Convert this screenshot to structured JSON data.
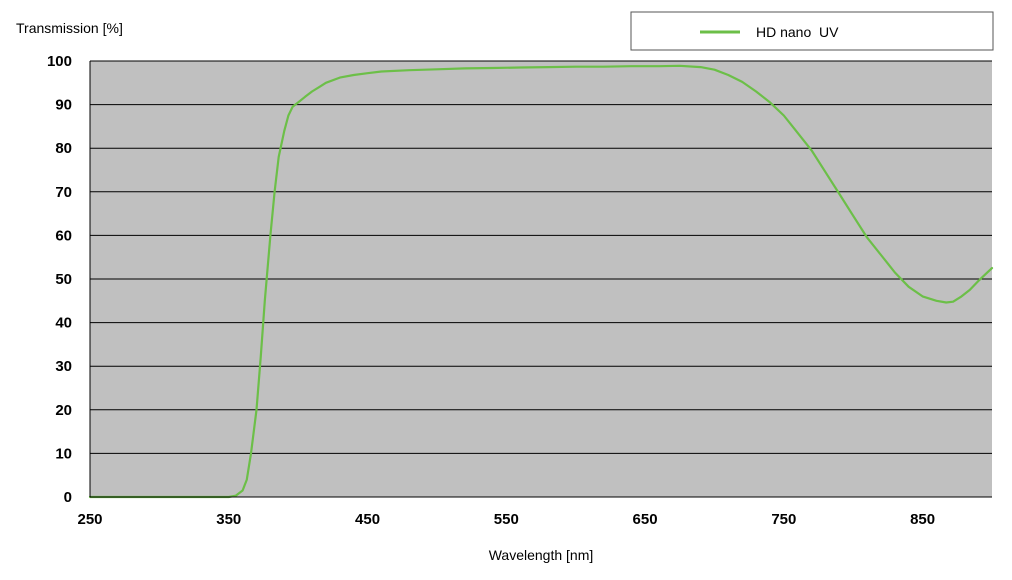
{
  "chart_data": {
    "type": "line",
    "title": "",
    "xlabel": "Wavelength [nm]",
    "ylabel": "Transmission [%]",
    "xlim": [
      250,
      900
    ],
    "ylim": [
      0,
      100
    ],
    "x_ticks": [
      250,
      350,
      450,
      550,
      650,
      750,
      850
    ],
    "y_ticks": [
      0,
      10,
      20,
      30,
      40,
      50,
      60,
      70,
      80,
      90,
      100
    ],
    "grid": "horizontal",
    "legend": "top-right",
    "plot_background": "#c0c0c0",
    "series": [
      {
        "name": "HD nano  UV",
        "color": "#6cbf48",
        "x": [
          250,
          300,
          350,
          355,
          360,
          363,
          366,
          370,
          373,
          376,
          380,
          383,
          386,
          390,
          393,
          396,
          400,
          405,
          410,
          415,
          420,
          430,
          440,
          450,
          460,
          480,
          500,
          520,
          540,
          560,
          580,
          600,
          620,
          640,
          660,
          675,
          690,
          700,
          710,
          720,
          730,
          740,
          750,
          760,
          770,
          780,
          790,
          800,
          810,
          820,
          830,
          840,
          850,
          860,
          867,
          872,
          878,
          884,
          890,
          895,
          900
        ],
        "y": [
          0,
          0,
          0,
          0.3,
          1.5,
          4,
          10,
          20,
          32,
          45,
          60,
          70,
          78,
          84,
          87.5,
          89.5,
          90.5,
          91.8,
          93,
          94,
          95,
          96.2,
          96.8,
          97.2,
          97.6,
          97.9,
          98.1,
          98.3,
          98.4,
          98.5,
          98.6,
          98.7,
          98.7,
          98.8,
          98.8,
          98.9,
          98.6,
          98,
          96.8,
          95.2,
          93,
          90.5,
          87.5,
          83.5,
          79.5,
          74.5,
          69.5,
          64.5,
          59.5,
          55.5,
          51.5,
          48.2,
          46,
          45,
          44.6,
          44.8,
          46,
          47.5,
          49.5,
          51,
          52.5
        ]
      }
    ]
  }
}
